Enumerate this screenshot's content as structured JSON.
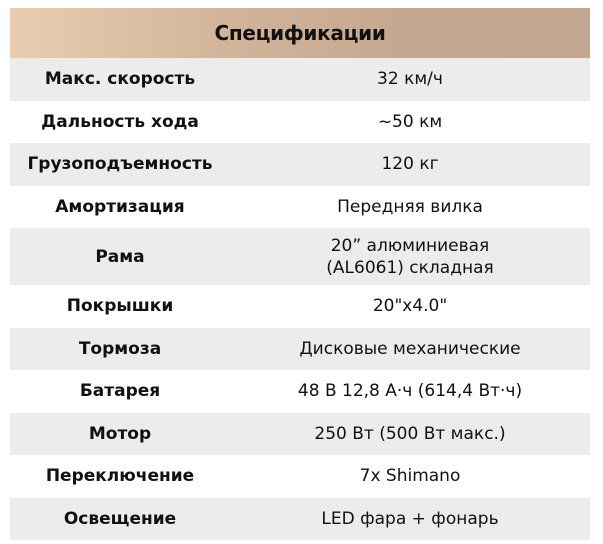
{
  "title": "Спецификации",
  "rows": [
    {
      "label": "Макс. скорость",
      "value": "32 км/ч"
    },
    {
      "label": "Дальность хода",
      "value": "~50 км"
    },
    {
      "label": "Грузоподъемность",
      "value": "120 кг"
    },
    {
      "label": "Амортизация",
      "value": "Передняя вилка"
    },
    {
      "label": "Рама",
      "value": "20” алюминиевая (AL6061) складная"
    },
    {
      "label": "Покрышки",
      "value": "20\"x4.0\""
    },
    {
      "label": "Тормоза",
      "value": "Дисковые механические"
    },
    {
      "label": "Батарея",
      "value": "48 В 12,8 А·ч (614,4 Вт·ч)"
    },
    {
      "label": "Мотор",
      "value": "250 Вт (500 Вт макс.)"
    },
    {
      "label": "Переключение",
      "value": "7x Shimano"
    },
    {
      "label": "Освещение",
      "value": "LED фара + фонарь"
    }
  ],
  "colors": {
    "header_left": "#e8cdb0",
    "header_right": "#c3a690",
    "stripe": "#ececec"
  }
}
